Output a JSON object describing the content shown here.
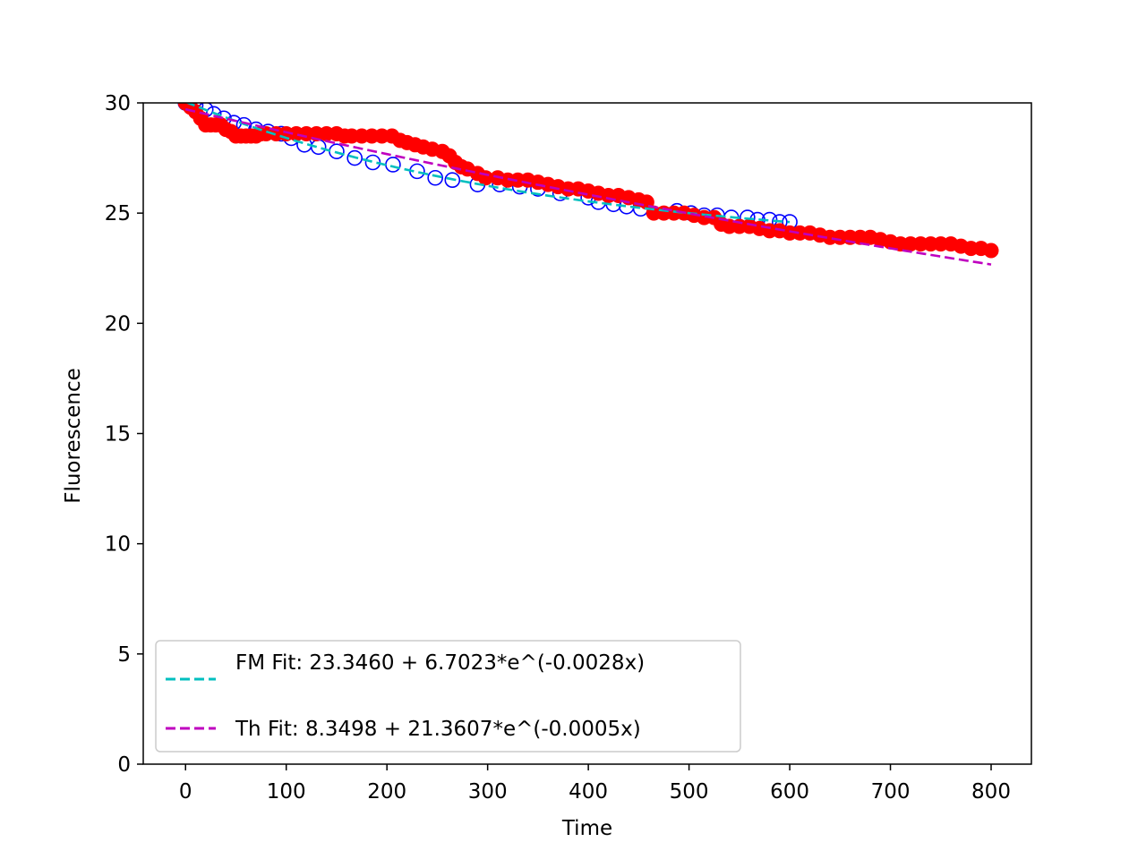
{
  "chart_data": {
    "type": "scatter",
    "title": "",
    "xlabel": "Time",
    "ylabel": "Fluorescence",
    "xlim": [
      -42,
      840
    ],
    "ylim": [
      0,
      30
    ],
    "xticks": [
      0,
      100,
      200,
      300,
      400,
      500,
      600,
      700,
      800
    ],
    "yticks": [
      0,
      5,
      10,
      15,
      20,
      25,
      30
    ],
    "grid": false,
    "legend_position": "lower-left",
    "series": [
      {
        "kind": "scatter-hollow",
        "color": "#0000ff",
        "points": [
          [
            0,
            30.0
          ],
          [
            10,
            29.9
          ],
          [
            20,
            29.7
          ],
          [
            28,
            29.5
          ],
          [
            38,
            29.3
          ],
          [
            48,
            29.1
          ],
          [
            58,
            29.0
          ],
          [
            70,
            28.8
          ],
          [
            82,
            28.7
          ],
          [
            95,
            28.6
          ],
          [
            105,
            28.4
          ],
          [
            118,
            28.1
          ],
          [
            132,
            28.0
          ],
          [
            150,
            27.8
          ],
          [
            168,
            27.5
          ],
          [
            186,
            27.3
          ],
          [
            206,
            27.2
          ],
          [
            230,
            26.9
          ],
          [
            248,
            26.6
          ],
          [
            265,
            26.5
          ],
          [
            290,
            26.3
          ],
          [
            312,
            26.3
          ],
          [
            332,
            26.2
          ],
          [
            350,
            26.1
          ],
          [
            372,
            25.9
          ],
          [
            400,
            25.7
          ],
          [
            410,
            25.5
          ],
          [
            425,
            25.4
          ],
          [
            438,
            25.3
          ],
          [
            452,
            25.2
          ],
          [
            488,
            25.1
          ],
          [
            502,
            25.0
          ],
          [
            515,
            24.9
          ],
          [
            528,
            24.9
          ],
          [
            542,
            24.8
          ],
          [
            558,
            24.8
          ],
          [
            568,
            24.7
          ],
          [
            580,
            24.7
          ],
          [
            590,
            24.6
          ],
          [
            600,
            24.6
          ]
        ]
      },
      {
        "kind": "scatter-filled",
        "color": "#ff0000",
        "points": [
          [
            0,
            30.0
          ],
          [
            5,
            29.8
          ],
          [
            10,
            29.6
          ],
          [
            15,
            29.3
          ],
          [
            20,
            29.0
          ],
          [
            25,
            29.0
          ],
          [
            30,
            29.0
          ],
          [
            35,
            29.0
          ],
          [
            40,
            28.8
          ],
          [
            45,
            28.7
          ],
          [
            50,
            28.5
          ],
          [
            55,
            28.5
          ],
          [
            60,
            28.5
          ],
          [
            65,
            28.5
          ],
          [
            70,
            28.5
          ],
          [
            75,
            28.6
          ],
          [
            80,
            28.6
          ],
          [
            90,
            28.6
          ],
          [
            100,
            28.6
          ],
          [
            110,
            28.6
          ],
          [
            120,
            28.6
          ],
          [
            130,
            28.6
          ],
          [
            140,
            28.6
          ],
          [
            150,
            28.6
          ],
          [
            158,
            28.5
          ],
          [
            165,
            28.5
          ],
          [
            175,
            28.5
          ],
          [
            185,
            28.5
          ],
          [
            195,
            28.5
          ],
          [
            205,
            28.5
          ],
          [
            213,
            28.3
          ],
          [
            220,
            28.2
          ],
          [
            228,
            28.1
          ],
          [
            236,
            28.0
          ],
          [
            245,
            27.9
          ],
          [
            255,
            27.8
          ],
          [
            262,
            27.6
          ],
          [
            268,
            27.3
          ],
          [
            274,
            27.1
          ],
          [
            280,
            27.0
          ],
          [
            290,
            26.8
          ],
          [
            298,
            26.6
          ],
          [
            310,
            26.6
          ],
          [
            320,
            26.5
          ],
          [
            330,
            26.5
          ],
          [
            340,
            26.5
          ],
          [
            350,
            26.4
          ],
          [
            360,
            26.3
          ],
          [
            370,
            26.2
          ],
          [
            380,
            26.1
          ],
          [
            390,
            26.1
          ],
          [
            400,
            26.0
          ],
          [
            410,
            25.9
          ],
          [
            420,
            25.8
          ],
          [
            430,
            25.8
          ],
          [
            440,
            25.7
          ],
          [
            450,
            25.6
          ],
          [
            458,
            25.5
          ],
          [
            465,
            25.0
          ],
          [
            475,
            25.0
          ],
          [
            485,
            25.0
          ],
          [
            495,
            25.0
          ],
          [
            505,
            24.9
          ],
          [
            515,
            24.8
          ],
          [
            525,
            24.8
          ],
          [
            532,
            24.5
          ],
          [
            540,
            24.4
          ],
          [
            550,
            24.4
          ],
          [
            560,
            24.4
          ],
          [
            570,
            24.3
          ],
          [
            580,
            24.2
          ],
          [
            590,
            24.2
          ],
          [
            600,
            24.1
          ],
          [
            610,
            24.1
          ],
          [
            620,
            24.1
          ],
          [
            630,
            24.0
          ],
          [
            640,
            23.9
          ],
          [
            650,
            23.9
          ],
          [
            660,
            23.9
          ],
          [
            670,
            23.9
          ],
          [
            680,
            23.9
          ],
          [
            690,
            23.8
          ],
          [
            700,
            23.7
          ],
          [
            710,
            23.6
          ],
          [
            720,
            23.6
          ],
          [
            730,
            23.6
          ],
          [
            740,
            23.6
          ],
          [
            750,
            23.6
          ],
          [
            760,
            23.6
          ],
          [
            770,
            23.5
          ],
          [
            780,
            23.4
          ],
          [
            790,
            23.4
          ],
          [
            800,
            23.3
          ]
        ]
      },
      {
        "kind": "dashed-line",
        "name": "FM Fit: 23.3460 + 6.7023*e^(-0.0028x)",
        "color": "#00bfbf",
        "equation": {
          "a": 23.346,
          "b": 6.7023,
          "k": -0.0028
        },
        "x_range": [
          0,
          600
        ]
      },
      {
        "kind": "dashed-line",
        "name": "Th Fit: 8.3498 + 21.3607*e^(-0.0005x)",
        "color": "#bf00bf",
        "equation": {
          "a": 8.3498,
          "b": 21.3607,
          "k": -0.0005
        },
        "x_range": [
          0,
          800
        ]
      }
    ]
  }
}
